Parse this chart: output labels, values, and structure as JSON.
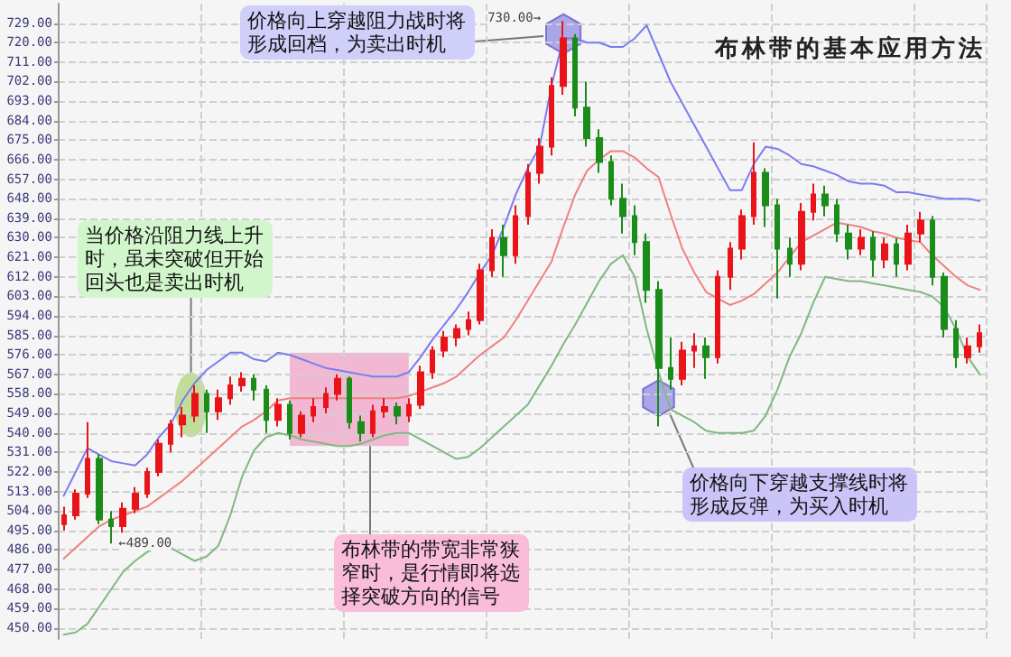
{
  "chart_data": {
    "type": "candlestick",
    "title": "布林带的基本应用方法",
    "categories": [
      null,
      null,
      null,
      null,
      null,
      null,
      null,
      null,
      null,
      null,
      null,
      null,
      null,
      null,
      null,
      null,
      null,
      null,
      null,
      null,
      null,
      null,
      null,
      null,
      null,
      null,
      null,
      null,
      null,
      null,
      null,
      null,
      null,
      null,
      null,
      null,
      null,
      null,
      null,
      null,
      null,
      null,
      null,
      null,
      null,
      null,
      null,
      null,
      null,
      null,
      null,
      null,
      null,
      null,
      null,
      null,
      null,
      null,
      null,
      null,
      null,
      null,
      null,
      null,
      null,
      null,
      null,
      null,
      null,
      null,
      null,
      null,
      null,
      null,
      null,
      null,
      null,
      null
    ],
    "series": [
      {
        "type": "line",
        "color": "#7b7bf0",
        "values": [
          511,
          522,
          533,
          530,
          527,
          526,
          525,
          530,
          538,
          544,
          555,
          563,
          569,
          573,
          577,
          577,
          574,
          573,
          577,
          576,
          574,
          572,
          570,
          569,
          568,
          567,
          566,
          566,
          566,
          568,
          575,
          583,
          590,
          597,
          605,
          614,
          622,
          635,
          650,
          662,
          672,
          700,
          722,
          722,
          720,
          720,
          718,
          718,
          722,
          728,
          715,
          702,
          692,
          682,
          672,
          662,
          652,
          652,
          664,
          672,
          671,
          668,
          664,
          663,
          661,
          659,
          656,
          655,
          655,
          654,
          651,
          651,
          650,
          649,
          648,
          648,
          648,
          647
        ]
      },
      {
        "type": "line",
        "color": "#f08080",
        "values": [
          482,
          487,
          492,
          497,
          500,
          502,
          504,
          506,
          510,
          514,
          518,
          523,
          528,
          533,
          538,
          543,
          546,
          550,
          555,
          556,
          556,
          556,
          556,
          556,
          556,
          556,
          556,
          556,
          556,
          557,
          559,
          561,
          563,
          566,
          571,
          576,
          580,
          584,
          592,
          601,
          610,
          619,
          635,
          650,
          661,
          666,
          670,
          670,
          667,
          662,
          658,
          641,
          625,
          614,
          605,
          602,
          599,
          601,
          604,
          609,
          614,
          621,
          628,
          631,
          634,
          637,
          636,
          635,
          633,
          632,
          630,
          629,
          628,
          622,
          617,
          612,
          608,
          606
        ]
      },
      {
        "type": "line",
        "color": "#80b880",
        "values": [
          447,
          448,
          452,
          460,
          468,
          476,
          481,
          485,
          488,
          487,
          484,
          481,
          483,
          488,
          502,
          520,
          532,
          538,
          540,
          539,
          537,
          536,
          535,
          534,
          534,
          535,
          537,
          539,
          540,
          540,
          537,
          534,
          531,
          528,
          529,
          533,
          538,
          543,
          548,
          553,
          562,
          571,
          581,
          590,
          600,
          610,
          618,
          622,
          612,
          588,
          568,
          551,
          548,
          545,
          541,
          540,
          540,
          540,
          541,
          548,
          560,
          575,
          586,
          600,
          612,
          611,
          610,
          610,
          609,
          608,
          607,
          606,
          605,
          603,
          598,
          588,
          575,
          567
        ]
      },
      {
        "ohlc": [
          [
            498,
            506,
            495,
            502
          ],
          [
            502,
            514,
            500,
            512
          ],
          [
            512,
            545,
            510,
            528
          ],
          [
            528,
            530,
            498,
            500
          ],
          [
            500,
            504,
            489,
            497
          ],
          [
            497,
            508,
            494,
            505
          ],
          [
            505,
            515,
            503,
            512
          ],
          [
            512,
            524,
            510,
            522
          ],
          [
            522,
            537,
            520,
            535
          ],
          [
            535,
            546,
            531,
            544
          ],
          [
            544,
            552,
            538,
            548
          ],
          [
            548,
            562,
            545,
            558
          ],
          [
            558,
            560,
            540,
            550
          ],
          [
            550,
            560,
            546,
            556
          ],
          [
            556,
            566,
            553,
            562
          ],
          [
            562,
            568,
            559,
            565
          ],
          [
            565,
            567,
            555,
            560
          ],
          [
            560,
            562,
            540,
            546
          ],
          [
            546,
            556,
            543,
            553
          ],
          [
            553,
            555,
            537,
            540
          ],
          [
            540,
            550,
            538,
            548
          ],
          [
            548,
            556,
            545,
            552
          ],
          [
            552,
            561,
            549,
            558
          ],
          [
            558,
            567,
            555,
            565
          ],
          [
            565,
            566,
            542,
            545
          ],
          [
            545,
            548,
            536,
            540
          ],
          [
            540,
            553,
            538,
            550
          ],
          [
            550,
            556,
            547,
            552
          ],
          [
            552,
            554,
            544,
            548
          ],
          [
            548,
            556,
            545,
            553
          ],
          [
            553,
            571,
            551,
            568
          ],
          [
            568,
            580,
            565,
            578
          ],
          [
            578,
            587,
            575,
            584
          ],
          [
            584,
            590,
            580,
            588
          ],
          [
            588,
            596,
            585,
            592
          ],
          [
            592,
            618,
            590,
            615
          ],
          [
            615,
            634,
            612,
            630
          ],
          [
            630,
            636,
            612,
            622
          ],
          [
            622,
            645,
            618,
            640
          ],
          [
            640,
            664,
            636,
            660
          ],
          [
            660,
            676,
            655,
            672
          ],
          [
            672,
            704,
            668,
            700
          ],
          [
            700,
            730,
            696,
            722
          ],
          [
            722,
            724,
            686,
            690
          ],
          [
            690,
            702,
            672,
            676
          ],
          [
            676,
            680,
            660,
            665
          ],
          [
            665,
            668,
            645,
            648
          ],
          [
            648,
            655,
            632,
            640
          ],
          [
            640,
            645,
            622,
            628
          ],
          [
            628,
            632,
            600,
            606
          ],
          [
            606,
            610,
            543,
            570
          ],
          [
            570,
            584,
            560,
            565
          ],
          [
            565,
            582,
            562,
            578
          ],
          [
            578,
            586,
            570,
            580
          ],
          [
            580,
            584,
            565,
            575
          ],
          [
            575,
            615,
            572,
            612
          ],
          [
            612,
            628,
            606,
            625
          ],
          [
            625,
            643,
            620,
            640
          ],
          [
            640,
            674,
            636,
            660
          ],
          [
            660,
            662,
            635,
            645
          ],
          [
            645,
            648,
            602,
            625
          ],
          [
            625,
            630,
            612,
            618
          ],
          [
            618,
            646,
            615,
            642
          ],
          [
            642,
            655,
            638,
            650
          ],
          [
            650,
            654,
            640,
            645
          ],
          [
            645,
            648,
            628,
            632
          ],
          [
            632,
            636,
            620,
            625
          ],
          [
            625,
            634,
            622,
            630
          ],
          [
            630,
            633,
            612,
            620
          ],
          [
            620,
            630,
            616,
            627
          ],
          [
            627,
            630,
            612,
            618
          ],
          [
            618,
            636,
            615,
            632
          ],
          [
            632,
            642,
            628,
            638
          ],
          [
            638,
            640,
            608,
            612
          ],
          [
            612,
            614,
            584,
            588
          ],
          [
            588,
            592,
            570,
            575
          ],
          [
            575,
            584,
            572,
            580
          ],
          [
            580,
            590,
            577,
            586
          ]
        ],
        "colors": [
          "#e8141a",
          "#e8141a",
          "#e8141a",
          "#1a8c1a",
          "#1a8c1a",
          "#e8141a",
          "#e8141a",
          "#e8141a",
          "#e8141a",
          "#e8141a",
          "#e8141a",
          "#e8141a",
          "#1a8c1a",
          "#e8141a",
          "#e8141a",
          "#e8141a",
          "#1a8c1a",
          "#1a8c1a",
          "#e8141a",
          "#1a8c1a",
          "#e8141a",
          "#e8141a",
          "#e8141a",
          "#e8141a",
          "#1a8c1a",
          "#1a8c1a",
          "#e8141a",
          "#e8141a",
          "#1a8c1a",
          "#e8141a",
          "#e8141a",
          "#e8141a",
          "#e8141a",
          "#e8141a",
          "#e8141a",
          "#e8141a",
          "#e8141a",
          "#1a8c1a",
          "#e8141a",
          "#e8141a",
          "#e8141a",
          "#e8141a",
          "#e8141a",
          "#1a8c1a",
          "#1a8c1a",
          "#1a8c1a",
          "#1a8c1a",
          "#1a8c1a",
          "#1a8c1a",
          "#1a8c1a",
          "#1a8c1a",
          "#1a8c1a",
          "#e8141a",
          "#e8141a",
          "#1a8c1a",
          "#e8141a",
          "#e8141a",
          "#e8141a",
          "#e8141a",
          "#1a8c1a",
          "#1a8c1a",
          "#1a8c1a",
          "#e8141a",
          "#e8141a",
          "#1a8c1a",
          "#1a8c1a",
          "#1a8c1a",
          "#e8141a",
          "#1a8c1a",
          "#e8141a",
          "#1a8c1a",
          "#e8141a",
          "#e8141a",
          "#1a8c1a",
          "#1a8c1a",
          "#1a8c1a",
          "#e8141a",
          "#e8141a"
        ]
      }
    ],
    "ylim": [
      445,
      738
    ],
    "yticks": [
      {
        "value": 450,
        "label": "450.00"
      },
      {
        "value": 459,
        "label": "459.00"
      },
      {
        "value": 468,
        "label": "468.00"
      },
      {
        "value": 477,
        "label": "477.00"
      },
      {
        "value": 486,
        "label": "486.00"
      },
      {
        "value": 495,
        "label": "495.00"
      },
      {
        "value": 504,
        "label": "504.00"
      },
      {
        "value": 513,
        "label": "513.00"
      },
      {
        "value": 522,
        "label": "522.00"
      },
      {
        "value": 531,
        "label": "531.00"
      },
      {
        "value": 540,
        "label": "540.00"
      },
      {
        "value": 549,
        "label": "549.00"
      },
      {
        "value": 558,
        "label": "558.00"
      },
      {
        "value": 567,
        "label": "567.00"
      },
      {
        "value": 576,
        "label": "576.00"
      },
      {
        "value": 585,
        "label": "585.00"
      },
      {
        "value": 594,
        "label": "594.00"
      },
      {
        "value": 603,
        "label": "603.00"
      },
      {
        "value": 612,
        "label": "612.00"
      },
      {
        "value": 621,
        "label": "621.00"
      },
      {
        "value": 630,
        "label": "630.00"
      },
      {
        "value": 639,
        "label": "639.00"
      },
      {
        "value": 648,
        "label": "648.00"
      },
      {
        "value": 657,
        "label": "657.00"
      },
      {
        "value": 666,
        "label": "666.00"
      },
      {
        "value": 675,
        "label": "675.00"
      },
      {
        "value": 684,
        "label": "684.00"
      },
      {
        "value": 693,
        "label": "693.00"
      },
      {
        "value": 702,
        "label": "702.00"
      },
      {
        "value": 711,
        "label": "711.00"
      },
      {
        "value": 720,
        "label": "720.00"
      },
      {
        "value": 729,
        "label": "729.00"
      }
    ],
    "annotations": [
      "价格向上穿越阻力战时将形成回档，为卖出时机",
      "当价格沿阻力线上升时，虽未突破但开始回头也是卖出时机",
      "布林带的带宽非常狭窄时，是行情即将选择突破方向的信号",
      "价格向下穿越支撑线时将形成反弹，为买入时机",
      "730.00→",
      "←489.00"
    ],
    "grid": true,
    "tick_labels": "y",
    "marker": "none",
    "line_style": "solid"
  }
}
